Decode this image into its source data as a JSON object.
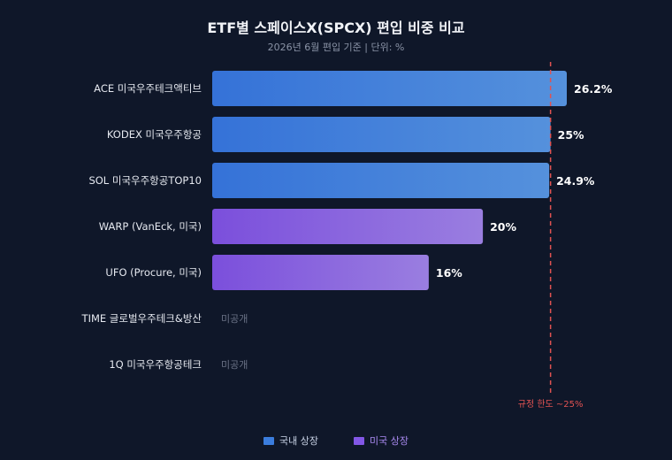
{
  "chart_data": {
    "type": "bar",
    "orientation": "horizontal",
    "title": "ETF별 스페이스X(SPCX) 편입 비중 비교",
    "subtitle": "2026년 6월 편입 기준 | 단위: %",
    "xlim": [
      0,
      40
    ],
    "categories": [
      "ACE 미국우주테크액티브",
      "KODEX 미국우주항공",
      "SOL 미국우주항공TOP10",
      "WARP (VanEck, 미국)",
      "UFO (Procure, 미국)",
      "TIME 글로벌우주테크&방산",
      "1Q 미국우주항공테크"
    ],
    "values": [
      26.2,
      25,
      24.9,
      20,
      16,
      null,
      null
    ],
    "value_labels": [
      "26.2%",
      "25%",
      "24.9%",
      "20%",
      "16%",
      "미공개",
      "미공개"
    ],
    "groups": [
      "domestic",
      "domestic",
      "domestic",
      "us",
      "us",
      null,
      null
    ],
    "reference_line": {
      "value": 25,
      "label": "규정 한도 ~25%",
      "color": "#e05252"
    },
    "legend": [
      {
        "key": "domestic",
        "label": "국내 상장",
        "color": "#3b7ddd"
      },
      {
        "key": "us",
        "label": "미국 상장",
        "color": "#8257e5"
      }
    ],
    "colors": {
      "domestic_start": "#3572d8",
      "domestic_end": "#5591dc",
      "us_start": "#7b4fdc",
      "us_end": "#9a7ee0",
      "undisclosed": "#6b7387"
    }
  }
}
